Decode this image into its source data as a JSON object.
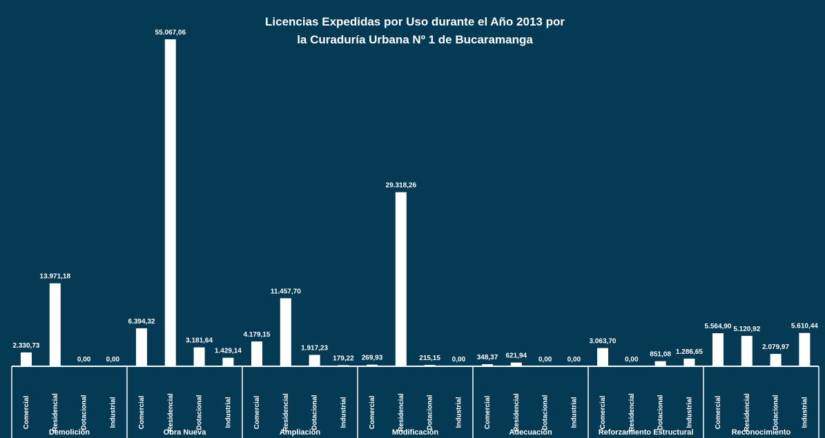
{
  "chart_data": {
    "type": "bar",
    "title_lines": [
      "Licencias Expedidas por Uso durante el Año 2013 por",
      "la Curaduría Urbana Nº 1 de Bucaramanga"
    ],
    "sub_categories": [
      "Comercial",
      "Residencial",
      "Dotacional",
      "Industrial"
    ],
    "groups": [
      {
        "name": "Demolición",
        "values": [
          2330.73,
          13971.18,
          0.0,
          0.0
        ],
        "labels": [
          "2.330,73",
          "13.971,18",
          "0,00",
          "0,00"
        ]
      },
      {
        "name": "Obra Nueva",
        "values": [
          6394.32,
          55067.06,
          3181.64,
          1429.14
        ],
        "labels": [
          "6.394,32",
          "55.067,06",
          "3.181,64",
          "1.429,14"
        ]
      },
      {
        "name": "Ampliación",
        "values": [
          4179.15,
          11457.7,
          1917.23,
          179.22
        ],
        "labels": [
          "4.179,15",
          "11.457,70",
          "1.917,23",
          "179,22"
        ]
      },
      {
        "name": "Modificación",
        "values": [
          269.93,
          29318.26,
          215.15,
          0.0
        ],
        "labels": [
          "269,93",
          "29.318,26",
          "215,15",
          "0,00"
        ]
      },
      {
        "name": "Adecuación",
        "values": [
          348.37,
          621.94,
          0.0,
          0.0
        ],
        "labels": [
          "348,37",
          "621,94",
          "0,00",
          "0,00"
        ]
      },
      {
        "name": "Reforzamiento Estructural",
        "values": [
          3063.7,
          0.0,
          851.08,
          1286.65
        ],
        "labels": [
          "3.063,70",
          "0,00",
          "851,08",
          "1.286,65"
        ]
      },
      {
        "name": "Reconocimiento",
        "values": [
          5564.9,
          5120.92,
          2079.97,
          5610.44
        ],
        "labels": [
          "5.564,90",
          "5.120,92",
          "2.079,97",
          "5.610,44"
        ]
      }
    ],
    "ylim": [
      0,
      55067.06
    ],
    "colors": {
      "background": "#053a55",
      "bars": "#ffffff",
      "text": "#ffffff"
    }
  }
}
